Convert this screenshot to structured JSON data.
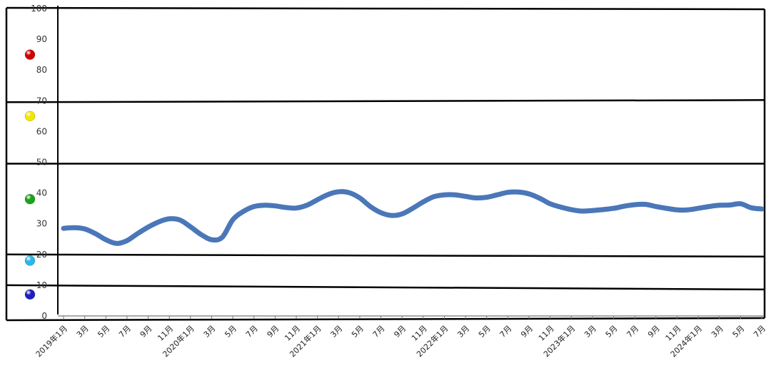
{
  "chart_data": {
    "type": "line",
    "ylim": [
      0,
      100
    ],
    "y_ticks": [
      "0",
      "10",
      "20",
      "30",
      "40",
      "50",
      "60",
      "70",
      "80",
      "90",
      "100"
    ],
    "x_tick_labels": [
      "2019年1月",
      "3月",
      "5月",
      "7月",
      "9月",
      "11月",
      "2020年1月",
      "3月",
      "5月",
      "7月",
      "9月",
      "11月",
      "2021年1月",
      "3月",
      "5月",
      "7月",
      "9月",
      "11月",
      "2022年1月",
      "3月",
      "5月",
      "7月",
      "9月",
      "11月",
      "2023年1月",
      "3月",
      "5月",
      "7月",
      "9月",
      "11月",
      "2024年1月",
      "3月",
      "5月",
      "7月"
    ],
    "x": [
      "2019-01",
      "2019-02",
      "2019-03",
      "2019-04",
      "2019-05",
      "2019-06",
      "2019-07",
      "2019-08",
      "2019-09",
      "2019-10",
      "2019-11",
      "2019-12",
      "2020-01",
      "2020-02",
      "2020-03",
      "2020-04",
      "2020-05",
      "2020-06",
      "2020-07",
      "2020-08",
      "2020-09",
      "2020-10",
      "2020-11",
      "2020-12",
      "2021-01",
      "2021-02",
      "2021-03",
      "2021-04",
      "2021-05",
      "2021-06",
      "2021-07",
      "2021-08",
      "2021-09",
      "2021-10",
      "2021-11",
      "2021-12",
      "2022-01",
      "2022-02",
      "2022-03",
      "2022-04",
      "2022-05",
      "2022-06",
      "2022-07",
      "2022-08",
      "2022-09",
      "2022-10",
      "2022-11",
      "2022-12",
      "2023-01",
      "2023-02",
      "2023-03",
      "2023-04",
      "2023-05",
      "2023-06",
      "2023-07",
      "2023-08",
      "2023-09",
      "2023-10",
      "2023-11",
      "2023-12",
      "2024-01",
      "2024-02",
      "2024-03",
      "2024-04",
      "2024-05",
      "2024-06",
      "2024-07"
    ],
    "series": [
      {
        "color": "#4a77b8",
        "values": [
          28.5,
          28.7,
          28.3,
          26.8,
          24.8,
          23.6,
          24.5,
          26.8,
          28.9,
          30.6,
          31.6,
          31.2,
          29.0,
          26.5,
          24.8,
          25.6,
          31.3,
          34.0,
          35.6,
          36.0,
          35.8,
          35.3,
          35.1,
          36.0,
          37.8,
          39.5,
          40.4,
          40.1,
          38.4,
          35.6,
          33.6,
          32.7,
          33.2,
          35.0,
          37.1,
          38.8,
          39.4,
          39.4,
          38.9,
          38.4,
          38.6,
          39.4,
          40.2,
          40.3,
          39.7,
          38.3,
          36.5,
          35.4,
          34.6,
          34.1,
          34.3,
          34.6,
          35.0,
          35.7,
          36.2,
          36.3,
          35.6,
          35.0,
          34.5,
          34.5,
          35.0,
          35.6,
          36.0,
          36.1,
          36.5,
          35.2,
          34.8
        ]
      }
    ],
    "band_colors": [
      "#d10000",
      "#f2e600",
      "#1aa31a",
      "#2fb5e6",
      "#1f1fbf"
    ],
    "band_values": [
      85,
      65,
      38,
      18,
      7
    ],
    "band_boundaries": [
      70,
      50,
      20,
      10
    ],
    "grid": false
  }
}
